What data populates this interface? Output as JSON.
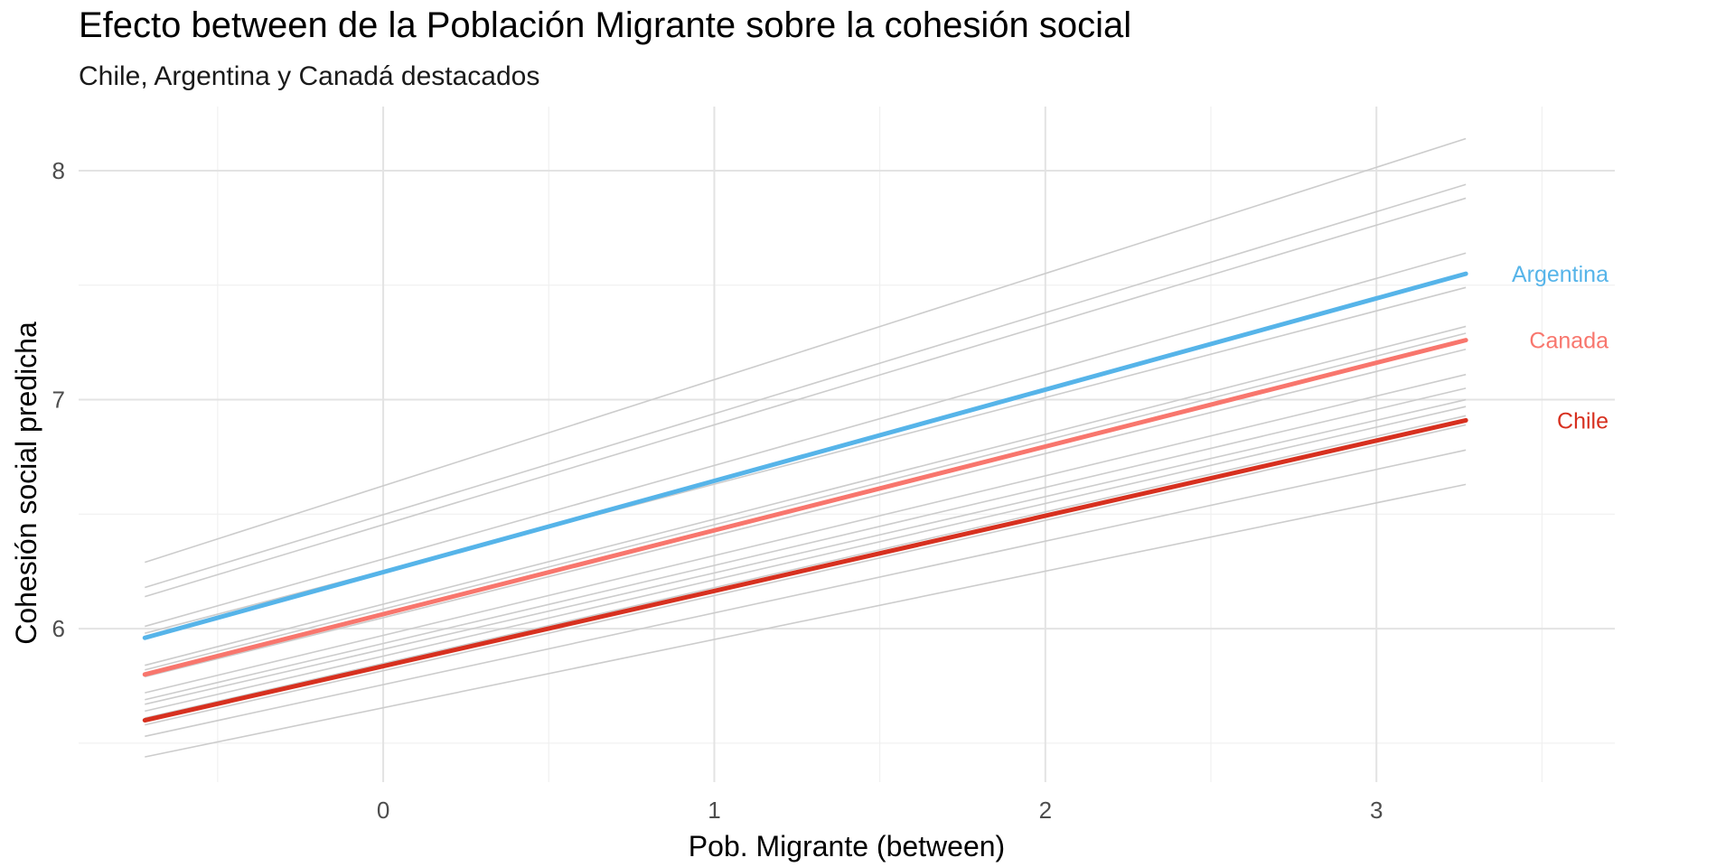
{
  "chart_data": {
    "type": "line",
    "title": "Efecto between de la Población Migrante sobre la cohesión social",
    "subtitle": "Chile, Argentina y Canadá destacados",
    "xlabel": "Pob. Migrante (between)",
    "ylabel": "Cohesión social predicha",
    "xlim": [
      -0.92,
      3.72
    ],
    "ylim": [
      5.33,
      8.28
    ],
    "x_ticks": [
      0,
      1,
      2,
      3
    ],
    "y_ticks": [
      6,
      7,
      8
    ],
    "grid": true,
    "x_range": [
      -0.72,
      3.27
    ],
    "background_series": {
      "color": "#cccccc",
      "lines": [
        {
          "y": [
            6.29,
            8.14
          ]
        },
        {
          "y": [
            6.18,
            7.94
          ]
        },
        {
          "y": [
            6.14,
            7.88
          ]
        },
        {
          "y": [
            6.01,
            7.64
          ]
        },
        {
          "y": [
            5.98,
            7.49
          ]
        },
        {
          "y": [
            5.84,
            7.32
          ]
        },
        {
          "y": [
            5.82,
            7.29
          ]
        },
        {
          "y": [
            5.79,
            7.22
          ]
        },
        {
          "y": [
            5.72,
            7.11
          ]
        },
        {
          "y": [
            5.69,
            7.05
          ]
        },
        {
          "y": [
            5.67,
            7.0
          ]
        },
        {
          "y": [
            5.64,
            6.97
          ]
        },
        {
          "y": [
            5.61,
            6.93
          ]
        },
        {
          "y": [
            5.58,
            6.89
          ]
        },
        {
          "y": [
            5.53,
            6.78
          ]
        },
        {
          "y": [
            5.44,
            6.63
          ]
        }
      ]
    },
    "series": [
      {
        "name": "Argentina",
        "color": "#56b4e9",
        "y": [
          5.96,
          7.55
        ]
      },
      {
        "name": "Canada",
        "color": "#f8766d",
        "y": [
          5.8,
          7.26
        ]
      },
      {
        "name": "Chile",
        "color": "#d7301f",
        "y": [
          5.6,
          6.91
        ]
      }
    ]
  }
}
